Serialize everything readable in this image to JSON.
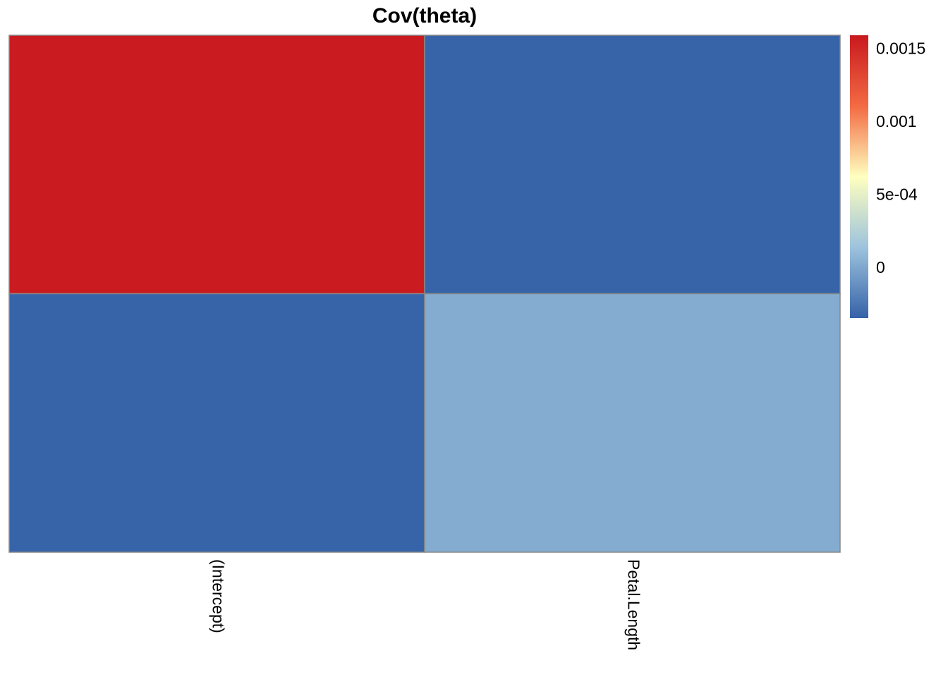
{
  "chart_data": {
    "type": "heatmap",
    "title": "Cov(theta)",
    "columns": [
      "(Intercept)",
      "Petal.Length"
    ],
    "row_labels": [],
    "values": [
      [
        0.00158,
        -0.00033
      ],
      [
        -0.00033,
        3e-05
      ]
    ],
    "color_range": [
      -0.00034,
      0.0016
    ],
    "colorscale": [
      "#3562a8",
      "#9dc3dd",
      "#ffffbf",
      "#f36a43",
      "#c8191e"
    ],
    "cell_border_color": "#888888",
    "legend": {
      "position": "right",
      "ticks": [
        {
          "value": 0,
          "label": "0"
        },
        {
          "value": 0.0005,
          "label": "5e-04"
        },
        {
          "value": 0.001,
          "label": "0.001"
        },
        {
          "value": 0.0015,
          "label": "0.0015"
        }
      ]
    },
    "grid": false
  }
}
